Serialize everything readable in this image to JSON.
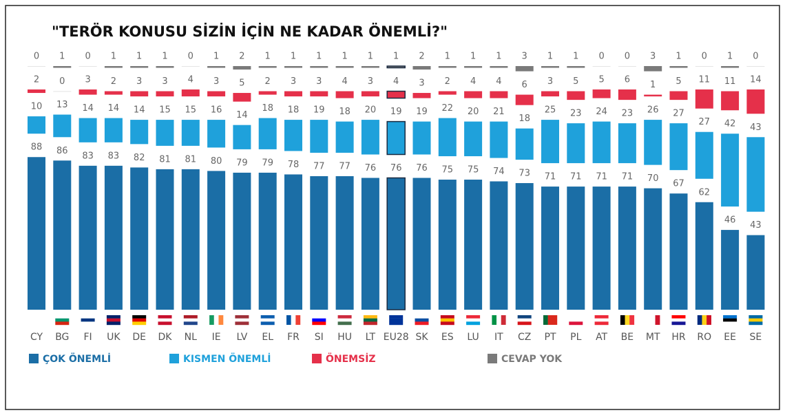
{
  "chart_data": {
    "type": "bar",
    "stacked": true,
    "title": "\"TERÖR KONUSU SİZİN İÇİN NE KADAR ÖNEMLİ?\"",
    "categories": [
      "CY",
      "BG",
      "FI",
      "UK",
      "DE",
      "DK",
      "NL",
      "IE",
      "LV",
      "EL",
      "FR",
      "SI",
      "HU",
      "LT",
      "EU28",
      "SK",
      "ES",
      "LU",
      "IT",
      "CZ",
      "PT",
      "PL",
      "AT",
      "BE",
      "MT",
      "HR",
      "RO",
      "EE",
      "SE"
    ],
    "highlight": "EU28",
    "series": [
      {
        "name": "ÇOK ÖNEMLİ",
        "color": "#1b6ea6",
        "values": [
          88,
          86,
          83,
          83,
          82,
          81,
          81,
          80,
          79,
          79,
          78,
          77,
          77,
          76,
          76,
          76,
          75,
          75,
          74,
          73,
          71,
          71,
          71,
          71,
          70,
          67,
          62,
          46,
          43
        ]
      },
      {
        "name": "KISMEN ÖNEMLİ",
        "color": "#1fa1db",
        "values": [
          10,
          13,
          14,
          14,
          14,
          15,
          15,
          16,
          14,
          18,
          18,
          19,
          18,
          20,
          19,
          19,
          22,
          20,
          21,
          18,
          25,
          23,
          24,
          23,
          26,
          27,
          27,
          42,
          43
        ]
      },
      {
        "name": "ÖNEMSİZ",
        "color": "#e5304a",
        "values": [
          2,
          0,
          3,
          2,
          3,
          3,
          4,
          3,
          5,
          2,
          3,
          3,
          4,
          3,
          4,
          3,
          2,
          4,
          4,
          6,
          3,
          5,
          5,
          6,
          1,
          5,
          11,
          11,
          14
        ]
      },
      {
        "name": "CEVAP YOK",
        "color": "#7a7a7a",
        "values": [
          0,
          1,
          0,
          1,
          1,
          1,
          0,
          1,
          2,
          1,
          1,
          1,
          1,
          1,
          1,
          2,
          1,
          1,
          1,
          3,
          1,
          1,
          0,
          0,
          3,
          1,
          0,
          1,
          0
        ]
      }
    ]
  }
}
